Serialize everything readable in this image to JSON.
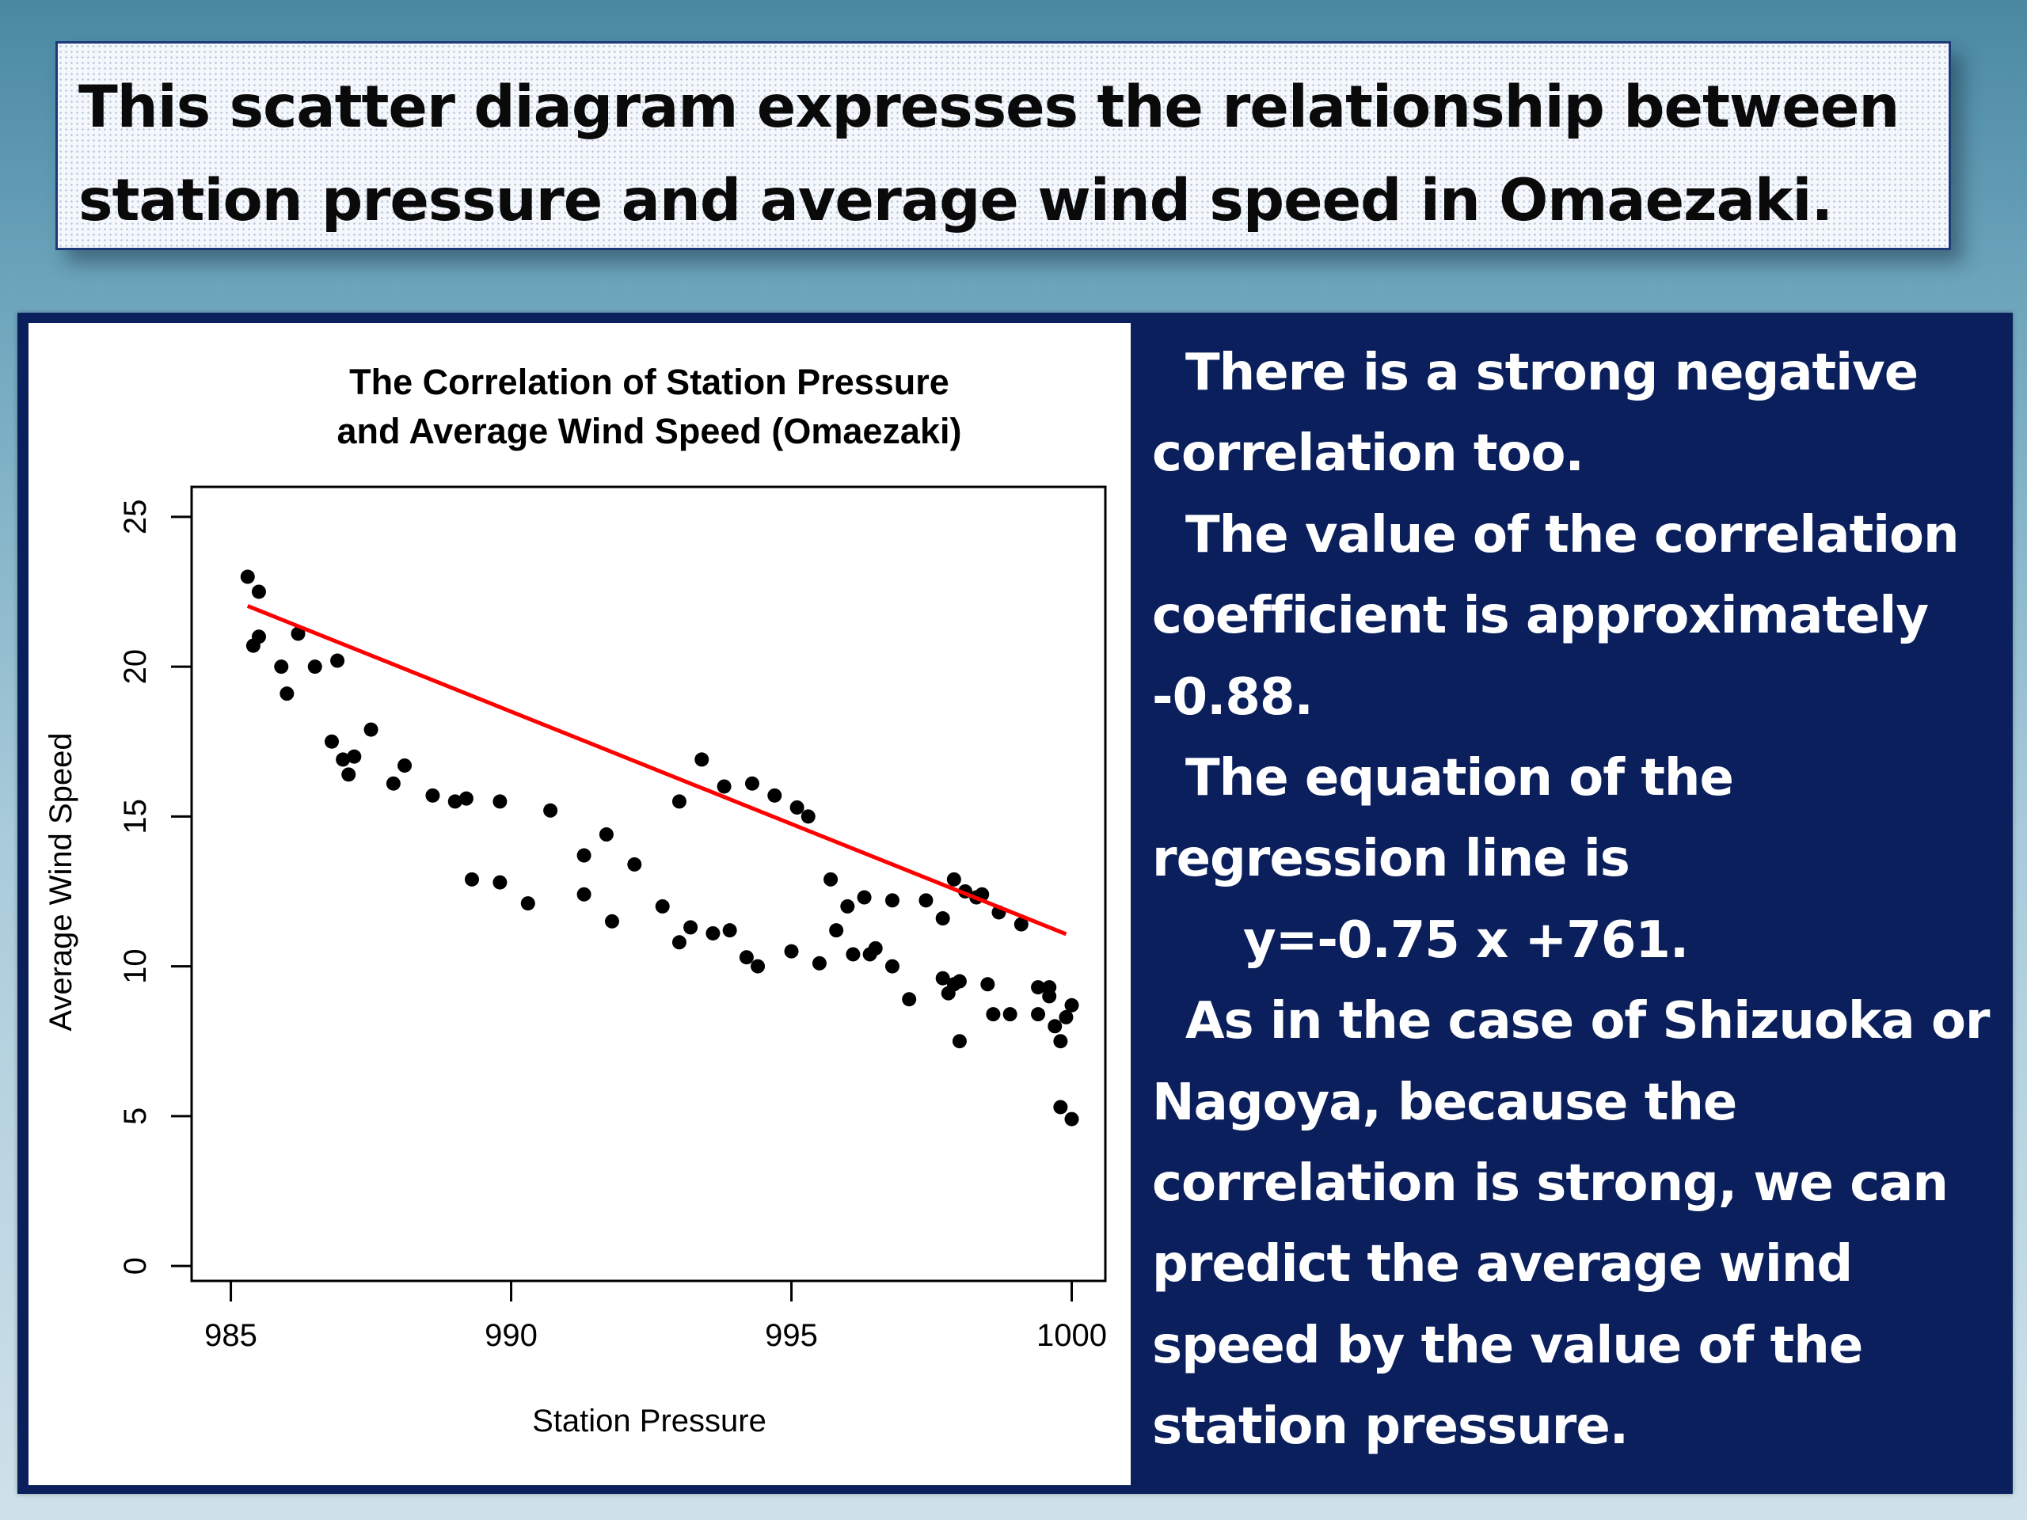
{
  "header": {
    "line1": "This scatter diagram expresses the relationship between",
    "line2": "station pressure and average wind speed in Omaezaki."
  },
  "description": {
    "p1": "There is a strong negative correlation too.",
    "p2": "The value of the correlation coefficient is approximately -0.88.",
    "p3": "The equation of the regression line is",
    "equation": "y=-0.75 x +761.",
    "p4": "As in the case of Shizuoka or Nagoya, because the correlation is strong, we can predict the average wind speed by the value of the station pressure."
  },
  "colors": {
    "panel": "#0a1f5c",
    "regression_line": "#ff0000",
    "points": "#000000"
  },
  "chart_data": {
    "type": "scatter",
    "title": "The Correlation of Station Pressure and Average Wind Speed (Omaezaki)",
    "title_lines": [
      "The Correlation of Station Pressure",
      "and Average Wind Speed (Omaezaki)"
    ],
    "xlabel": "Station Pressure",
    "ylabel": "Average Wind Speed",
    "xlim": [
      984.3,
      1000.6
    ],
    "ylim": [
      -0.5,
      26
    ],
    "xticks": [
      985,
      990,
      995,
      1000
    ],
    "yticks": [
      0,
      5,
      10,
      15,
      20,
      25
    ],
    "grid": false,
    "regression": {
      "slope": -0.75,
      "intercept": 761,
      "x_range": [
        985.3,
        999.9
      ]
    },
    "points": [
      [
        985.3,
        23.0
      ],
      [
        985.5,
        22.5
      ],
      [
        985.4,
        20.7
      ],
      [
        985.5,
        21.0
      ],
      [
        985.9,
        20.0
      ],
      [
        986.0,
        19.1
      ],
      [
        986.2,
        21.1
      ],
      [
        986.5,
        20.0
      ],
      [
        986.8,
        17.5
      ],
      [
        986.9,
        20.2
      ],
      [
        987.0,
        16.9
      ],
      [
        987.1,
        16.4
      ],
      [
        987.2,
        17.0
      ],
      [
        987.5,
        17.9
      ],
      [
        987.9,
        16.1
      ],
      [
        988.1,
        16.7
      ],
      [
        988.6,
        15.7
      ],
      [
        989.0,
        15.5
      ],
      [
        989.2,
        15.6
      ],
      [
        989.3,
        12.9
      ],
      [
        989.8,
        12.8
      ],
      [
        989.8,
        15.5
      ],
      [
        990.3,
        12.1
      ],
      [
        990.7,
        15.2
      ],
      [
        991.3,
        13.7
      ],
      [
        991.3,
        12.4
      ],
      [
        991.7,
        14.4
      ],
      [
        991.8,
        11.5
      ],
      [
        992.2,
        13.4
      ],
      [
        992.7,
        12.0
      ],
      [
        993.0,
        10.8
      ],
      [
        993.0,
        15.5
      ],
      [
        993.2,
        11.3
      ],
      [
        993.4,
        16.9
      ],
      [
        993.6,
        11.1
      ],
      [
        993.8,
        16.0
      ],
      [
        993.9,
        11.2
      ],
      [
        994.2,
        10.3
      ],
      [
        994.3,
        16.1
      ],
      [
        994.4,
        10.0
      ],
      [
        994.7,
        15.7
      ],
      [
        995.0,
        10.5
      ],
      [
        995.1,
        15.3
      ],
      [
        995.3,
        15.0
      ],
      [
        995.5,
        10.1
      ],
      [
        995.7,
        12.9
      ],
      [
        995.8,
        11.2
      ],
      [
        996.0,
        12.0
      ],
      [
        996.1,
        10.4
      ],
      [
        996.3,
        12.3
      ],
      [
        996.4,
        10.4
      ],
      [
        996.5,
        10.6
      ],
      [
        996.8,
        10.0
      ],
      [
        996.8,
        12.2
      ],
      [
        997.1,
        8.9
      ],
      [
        997.4,
        12.2
      ],
      [
        997.7,
        9.6
      ],
      [
        997.7,
        11.6
      ],
      [
        997.8,
        9.1
      ],
      [
        997.9,
        9.4
      ],
      [
        997.9,
        12.9
      ],
      [
        998.0,
        7.5
      ],
      [
        998.0,
        9.5
      ],
      [
        998.1,
        12.5
      ],
      [
        998.3,
        12.3
      ],
      [
        998.4,
        12.4
      ],
      [
        998.5,
        9.4
      ],
      [
        998.6,
        8.4
      ],
      [
        998.7,
        11.8
      ],
      [
        998.9,
        8.4
      ],
      [
        999.1,
        11.4
      ],
      [
        999.4,
        9.3
      ],
      [
        999.4,
        8.4
      ],
      [
        999.6,
        9.3
      ],
      [
        999.6,
        9.0
      ],
      [
        999.7,
        8.0
      ],
      [
        999.8,
        7.5
      ],
      [
        999.8,
        5.3
      ],
      [
        999.9,
        8.3
      ],
      [
        1000.0,
        8.7
      ],
      [
        1000.0,
        4.9
      ]
    ]
  }
}
